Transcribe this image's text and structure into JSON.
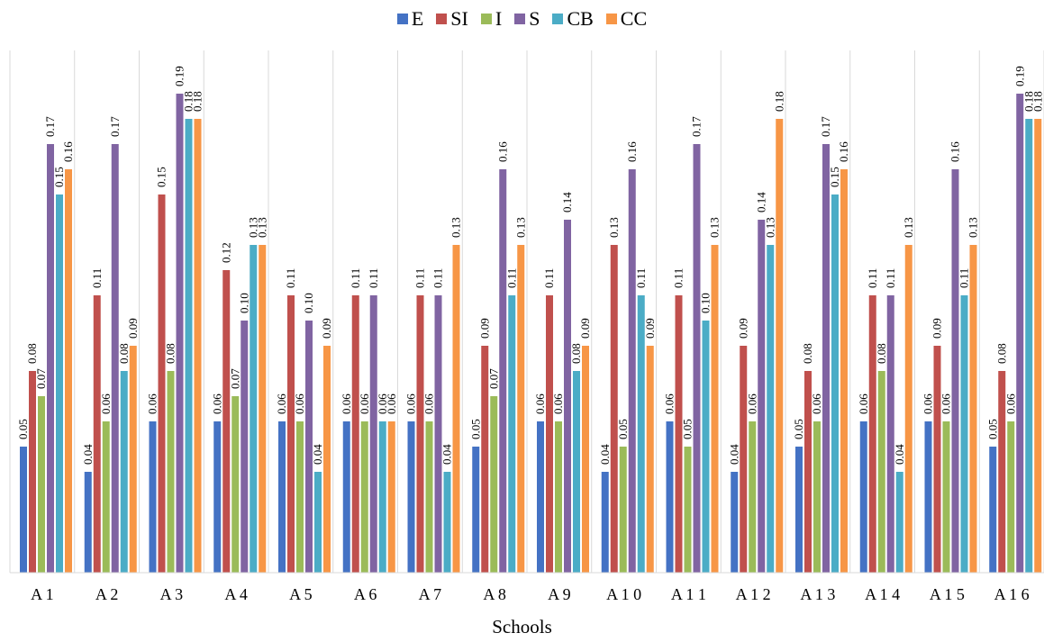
{
  "chart_data": {
    "type": "bar",
    "title": "",
    "xlabel": "Schools",
    "ylabel": "",
    "ylim": [
      0,
      0.2
    ],
    "grid": "vertical separators",
    "legend_position": "top",
    "categories": [
      "A1",
      "A2",
      "A3",
      "A4",
      "A5",
      "A6",
      "A7",
      "A8",
      "A9",
      "A10",
      "A11",
      "A12",
      "A13",
      "A14",
      "A15",
      "A16"
    ],
    "category_labels": [
      "A 1",
      "A 2",
      "A 3",
      "A 4",
      "A 5",
      "A 6",
      "A 7",
      "A 8",
      "A 9",
      "A 1 0",
      "A 1 1",
      "A 1 2",
      "A 1 3",
      "A 1 4",
      "A 1 5",
      "A 1 6"
    ],
    "series": [
      {
        "name": "E",
        "color": "#4472C4",
        "values": [
          0.05,
          0.04,
          0.06,
          0.06,
          0.06,
          0.06,
          0.06,
          0.05,
          0.06,
          0.04,
          0.06,
          0.04,
          0.05,
          0.06,
          0.06,
          0.05
        ]
      },
      {
        "name": "SI",
        "color": "#C0504D",
        "values": [
          0.08,
          0.11,
          0.15,
          0.12,
          0.11,
          0.11,
          0.11,
          0.09,
          0.11,
          0.13,
          0.11,
          0.09,
          0.08,
          0.11,
          0.09,
          0.08
        ]
      },
      {
        "name": "I",
        "color": "#9BBB59",
        "values": [
          0.07,
          0.06,
          0.08,
          0.07,
          0.06,
          0.06,
          0.06,
          0.07,
          0.06,
          0.05,
          0.05,
          0.06,
          0.06,
          0.08,
          0.06,
          0.06
        ]
      },
      {
        "name": "S",
        "color": "#8064A2",
        "values": [
          0.17,
          0.17,
          0.19,
          0.1,
          0.1,
          0.11,
          0.11,
          0.16,
          0.14,
          0.16,
          0.17,
          0.14,
          0.17,
          0.11,
          0.16,
          0.19
        ]
      },
      {
        "name": "CB",
        "color": "#4BACC6",
        "values": [
          0.15,
          0.08,
          0.18,
          0.13,
          0.04,
          0.06,
          0.04,
          0.11,
          0.08,
          0.11,
          0.1,
          0.13,
          0.15,
          0.04,
          0.11,
          0.18
        ]
      },
      {
        "name": "CC",
        "color": "#F79646",
        "values": [
          0.16,
          0.09,
          0.18,
          0.13,
          0.09,
          0.06,
          0.13,
          0.13,
          0.09,
          0.09,
          0.13,
          0.18,
          0.16,
          0.13,
          0.13,
          0.18
        ]
      }
    ]
  }
}
